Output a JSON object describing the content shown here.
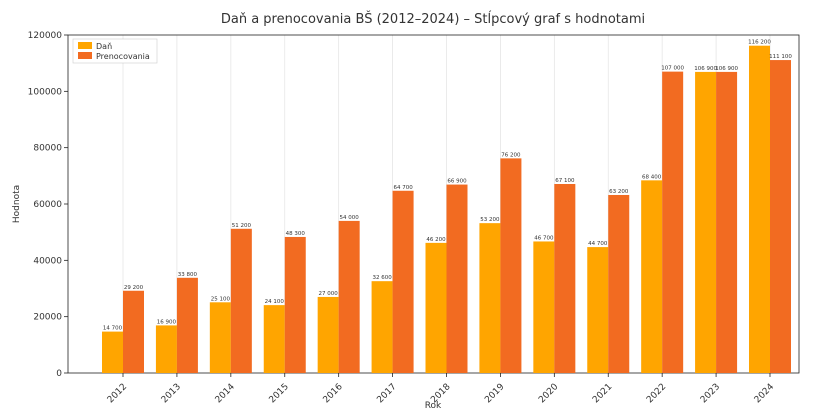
{
  "chart_data": {
    "type": "bar",
    "title": "Daň a prenocovania BŠ (2012–2024) – Stĺpcový graf s hodnotami",
    "xlabel": "Rok",
    "ylabel": "Hodnota",
    "ylim": [
      0,
      120000
    ],
    "yticks": [
      0,
      20000,
      40000,
      60000,
      80000,
      100000,
      120000
    ],
    "grid": "vertical",
    "legend_position": "top-left",
    "categories": [
      "2012",
      "2013",
      "2014",
      "2015",
      "2016",
      "2017",
      "2018",
      "2019",
      "2020",
      "2021",
      "2022",
      "2023",
      "2024"
    ],
    "series": [
      {
        "name": "Daň",
        "color": "#FFA500",
        "values": [
          14700,
          16900,
          25100,
          24100,
          27000,
          32600,
          46200,
          53200,
          46700,
          44700,
          68400,
          106900,
          116200
        ],
        "value_labels": [
          "14 700",
          "16 900",
          "25 100",
          "24 100",
          "27 000",
          "32 600",
          "46 200",
          "53 200",
          "46 700",
          "44 700",
          "68 400",
          "106 900",
          "116 200"
        ]
      },
      {
        "name": "Prenocovania",
        "color": "#F26B21",
        "values": [
          29200,
          33800,
          51200,
          48300,
          54000,
          64700,
          66900,
          76200,
          67100,
          63200,
          107000,
          106900,
          111100
        ],
        "value_labels": [
          "29 200",
          "33 800",
          "51 200",
          "48 300",
          "54 000",
          "64 700",
          "66 900",
          "76 200",
          "67 100",
          "63 200",
          "107 000",
          "106 900",
          "111 100"
        ]
      }
    ]
  }
}
